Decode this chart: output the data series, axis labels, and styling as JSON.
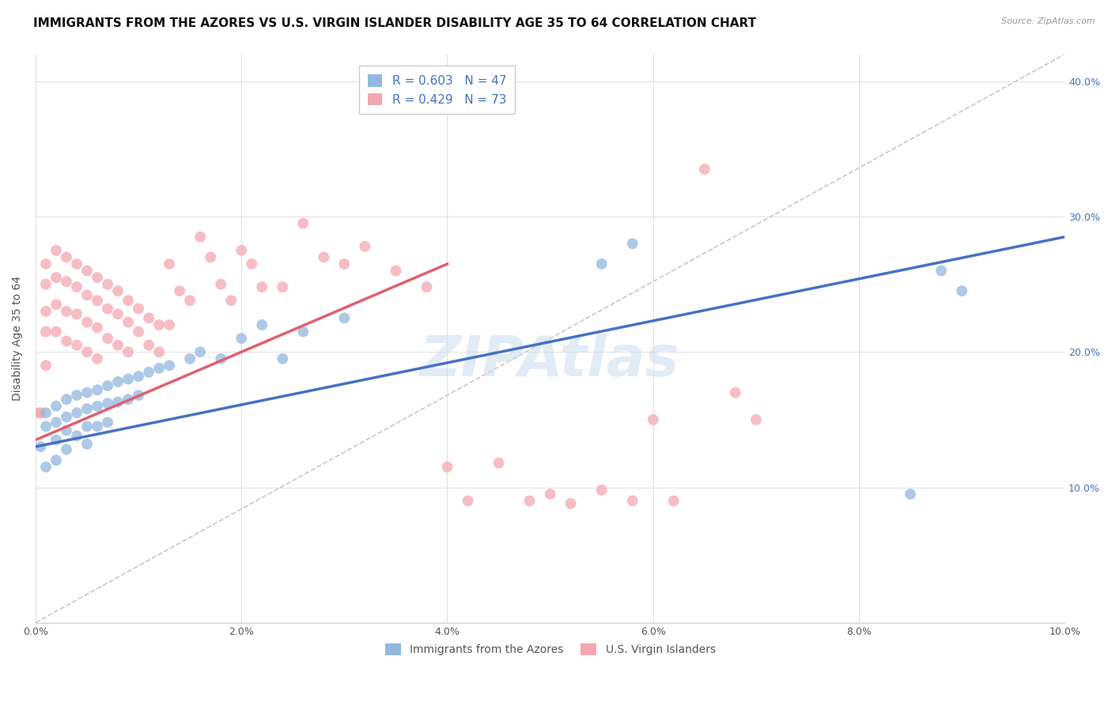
{
  "title": "IMMIGRANTS FROM THE AZORES VS U.S. VIRGIN ISLANDER DISABILITY AGE 35 TO 64 CORRELATION CHART",
  "source": "Source: ZipAtlas.com",
  "ylabel": "Disability Age 35 to 64",
  "xlim": [
    0.0,
    0.1
  ],
  "ylim": [
    0.0,
    0.42
  ],
  "xticks": [
    0.0,
    0.02,
    0.04,
    0.06,
    0.08,
    0.1
  ],
  "yticks": [
    0.0,
    0.1,
    0.2,
    0.3,
    0.4
  ],
  "xtick_labels": [
    "0.0%",
    "2.0%",
    "4.0%",
    "6.0%",
    "8.0%",
    "10.0%"
  ],
  "ytick_labels_right": [
    "",
    "10.0%",
    "20.0%",
    "30.0%",
    "40.0%"
  ],
  "blue_R": 0.603,
  "blue_N": 47,
  "pink_R": 0.429,
  "pink_N": 73,
  "blue_color": "#92b8e0",
  "pink_color": "#f4a7b0",
  "blue_line_color": "#4472c4",
  "pink_line_color": "#e06070",
  "diagonal_color": "#c8c8c8",
  "title_fontsize": 11,
  "axis_label_fontsize": 10,
  "tick_fontsize": 9,
  "legend_fontsize": 11,
  "blue_line_x0": 0.0,
  "blue_line_y0": 0.13,
  "blue_line_x1": 0.1,
  "blue_line_y1": 0.285,
  "pink_line_x0": 0.0,
  "pink_line_y0": 0.135,
  "pink_line_x1": 0.04,
  "pink_line_y1": 0.265,
  "blue_scatter_x": [
    0.0005,
    0.001,
    0.001,
    0.001,
    0.002,
    0.002,
    0.002,
    0.002,
    0.003,
    0.003,
    0.003,
    0.003,
    0.004,
    0.004,
    0.004,
    0.005,
    0.005,
    0.005,
    0.005,
    0.006,
    0.006,
    0.006,
    0.007,
    0.007,
    0.007,
    0.008,
    0.008,
    0.009,
    0.009,
    0.01,
    0.01,
    0.011,
    0.012,
    0.013,
    0.015,
    0.016,
    0.018,
    0.02,
    0.022,
    0.024,
    0.026,
    0.03,
    0.055,
    0.058,
    0.085,
    0.088,
    0.09
  ],
  "blue_scatter_y": [
    0.13,
    0.155,
    0.145,
    0.115,
    0.16,
    0.148,
    0.135,
    0.12,
    0.165,
    0.152,
    0.142,
    0.128,
    0.168,
    0.155,
    0.138,
    0.17,
    0.158,
    0.145,
    0.132,
    0.172,
    0.16,
    0.145,
    0.175,
    0.162,
    0.148,
    0.178,
    0.163,
    0.18,
    0.165,
    0.182,
    0.168,
    0.185,
    0.188,
    0.19,
    0.195,
    0.2,
    0.195,
    0.21,
    0.22,
    0.195,
    0.215,
    0.225,
    0.265,
    0.28,
    0.095,
    0.26,
    0.245
  ],
  "pink_scatter_x": [
    0.0003,
    0.0005,
    0.001,
    0.001,
    0.001,
    0.001,
    0.001,
    0.002,
    0.002,
    0.002,
    0.002,
    0.003,
    0.003,
    0.003,
    0.003,
    0.004,
    0.004,
    0.004,
    0.004,
    0.005,
    0.005,
    0.005,
    0.005,
    0.006,
    0.006,
    0.006,
    0.006,
    0.007,
    0.007,
    0.007,
    0.008,
    0.008,
    0.008,
    0.009,
    0.009,
    0.009,
    0.01,
    0.01,
    0.011,
    0.011,
    0.012,
    0.012,
    0.013,
    0.013,
    0.014,
    0.015,
    0.016,
    0.017,
    0.018,
    0.019,
    0.02,
    0.021,
    0.022,
    0.024,
    0.026,
    0.028,
    0.03,
    0.032,
    0.035,
    0.038,
    0.04,
    0.042,
    0.045,
    0.048,
    0.05,
    0.052,
    0.055,
    0.058,
    0.06,
    0.062,
    0.065,
    0.068,
    0.07
  ],
  "pink_scatter_y": [
    0.155,
    0.155,
    0.265,
    0.25,
    0.23,
    0.215,
    0.19,
    0.275,
    0.255,
    0.235,
    0.215,
    0.27,
    0.252,
    0.23,
    0.208,
    0.265,
    0.248,
    0.228,
    0.205,
    0.26,
    0.242,
    0.222,
    0.2,
    0.255,
    0.238,
    0.218,
    0.195,
    0.25,
    0.232,
    0.21,
    0.245,
    0.228,
    0.205,
    0.238,
    0.222,
    0.2,
    0.232,
    0.215,
    0.225,
    0.205,
    0.22,
    0.2,
    0.265,
    0.22,
    0.245,
    0.238,
    0.285,
    0.27,
    0.25,
    0.238,
    0.275,
    0.265,
    0.248,
    0.248,
    0.295,
    0.27,
    0.265,
    0.278,
    0.26,
    0.248,
    0.115,
    0.09,
    0.118,
    0.09,
    0.095,
    0.088,
    0.098,
    0.09,
    0.15,
    0.09,
    0.335,
    0.17,
    0.15
  ],
  "watermark_text": "ZIPAtlas",
  "watermark_color": "#cde0f0",
  "watermark_alpha": 0.6
}
